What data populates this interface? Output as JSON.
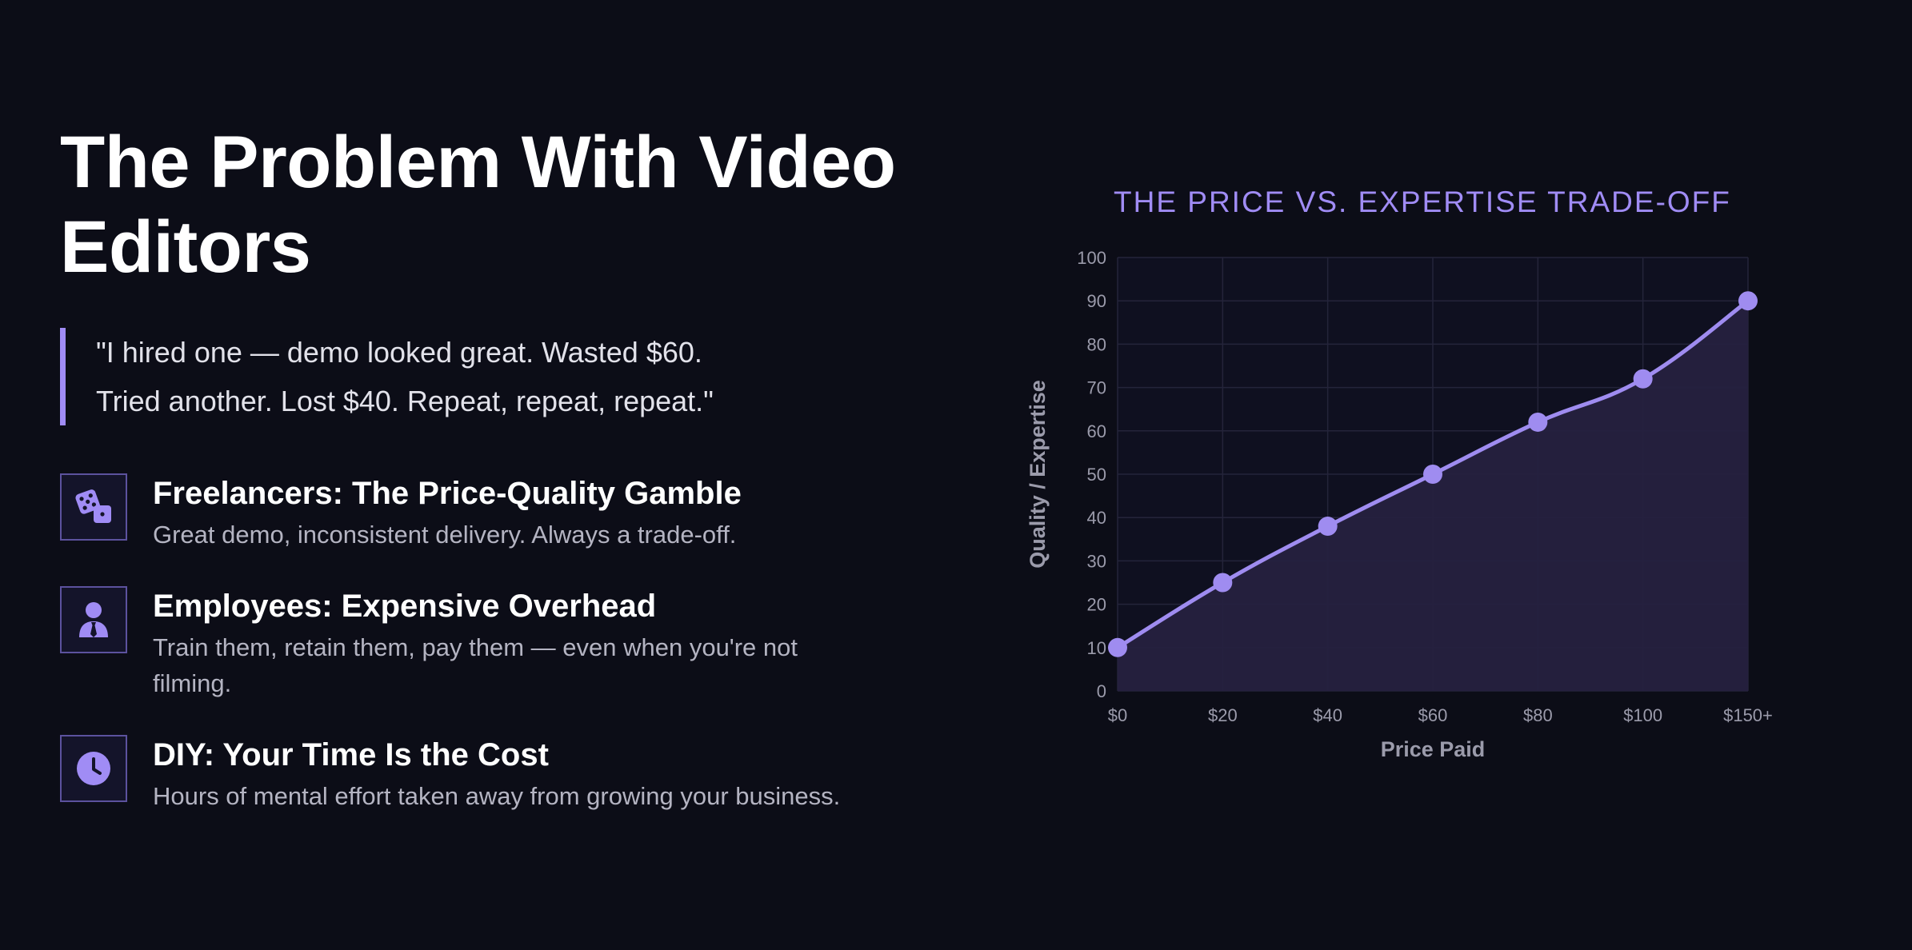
{
  "heading": {
    "title": "The Problem With Video Editors"
  },
  "quote": {
    "line1": "\"I hired one — demo looked great. Wasted $60.",
    "line2": "Tried another. Lost $40. Repeat, repeat, repeat.\""
  },
  "items": [
    {
      "icon": "dice-icon",
      "title": "Freelancers: The Price-Quality Gamble",
      "desc": "Great demo, inconsistent delivery. Always a trade-off."
    },
    {
      "icon": "user-tie-icon",
      "title": "Employees: Expensive Overhead",
      "desc": "Train them, retain them, pay them — even when you're not filming."
    },
    {
      "icon": "clock-icon",
      "title": "DIY: Your Time Is the Cost",
      "desc": "Hours of mental effort taken away from growing your business."
    }
  ],
  "colors": {
    "background": "#0c0d17",
    "accent": "#a08cf5",
    "line": "#9f8cf0",
    "area": "#26213f"
  },
  "chart_data": {
    "type": "line",
    "title": "THE PRICE VS. EXPERTISE TRADE-OFF",
    "xlabel": "Price Paid",
    "ylabel": "Quality / Expertise",
    "categories": [
      "$0",
      "$20",
      "$40",
      "$60",
      "$80",
      "$100",
      "$150+"
    ],
    "series": [
      {
        "values": [
          10,
          25,
          38,
          50,
          62,
          72,
          90
        ]
      }
    ],
    "ylim": [
      0,
      100
    ],
    "yticks": [
      0,
      10,
      20,
      30,
      40,
      50,
      60,
      70,
      80,
      90,
      100
    ],
    "grid": true,
    "area_fill": true
  }
}
